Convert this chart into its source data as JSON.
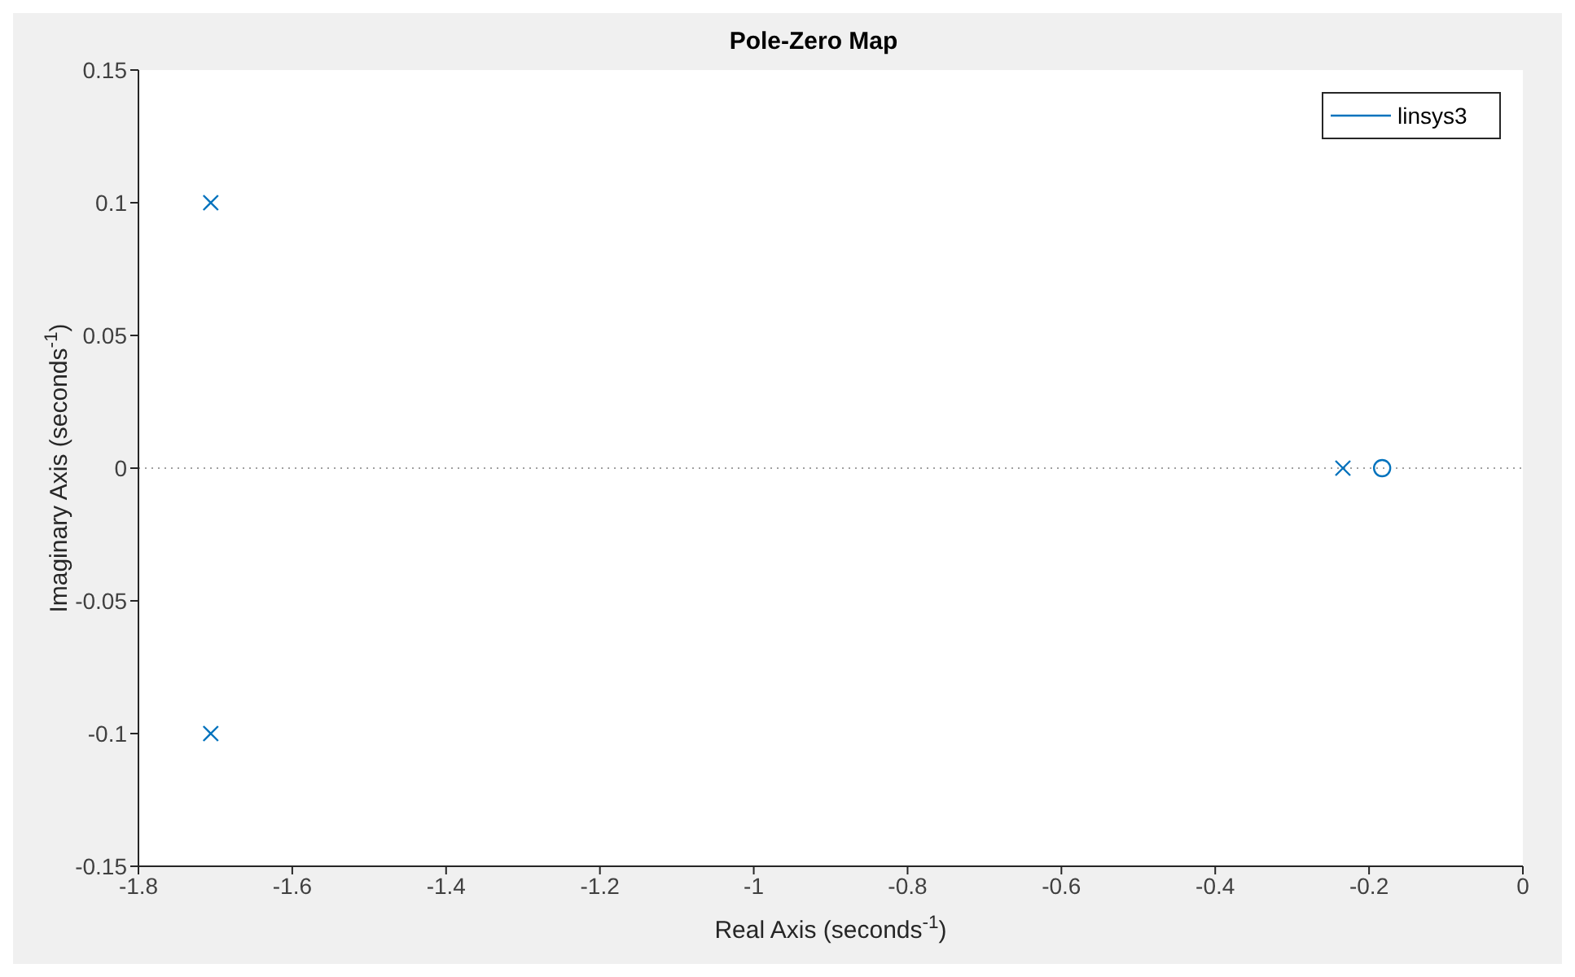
{
  "chart_data": {
    "type": "scatter",
    "title": "Pole-Zero Map",
    "xlabel": "Real Axis (seconds$^{-1}$)",
    "ylabel": "Imaginary Axis (seconds$^{-1}$)",
    "series": [
      {
        "name": "linsys3",
        "color": "#0072bd",
        "marker": "cross",
        "x": [
          -1.706,
          -1.706,
          -0.234
        ],
        "values": [
          0.1,
          -0.1,
          0
        ]
      },
      {
        "color": "#0072bd",
        "marker": "circle",
        "x": [
          -0.183
        ],
        "values": [
          0
        ]
      }
    ],
    "xlim": [
      -1.8,
      0
    ],
    "xticks": [
      -1.8,
      -1.6,
      -1.4,
      -1.2,
      -1,
      -0.8,
      -0.6,
      -0.4,
      -0.2,
      0
    ],
    "ylim": [
      -0.15,
      0.15
    ],
    "yticks": [
      -0.15,
      -0.1,
      -0.05,
      0,
      0.05,
      0.1,
      0.15
    ],
    "ref_lines": [
      {
        "axis": "y",
        "value": 0,
        "line_style": "dotted",
        "color": "#a0a0a0"
      }
    ],
    "legend": "top right",
    "grid": false
  }
}
